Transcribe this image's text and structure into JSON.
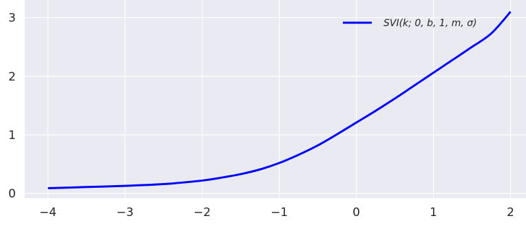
{
  "chart_data": {
    "type": "line",
    "title": "",
    "xlabel": "",
    "ylabel": "",
    "xlim": [
      -4.3,
      2.2
    ],
    "ylim": [
      -0.08,
      3.3
    ],
    "x_ticks": [
      -4,
      -3,
      -2,
      -1,
      0,
      1,
      2
    ],
    "x_tick_labels": [
      "−4",
      "−3",
      "−2",
      "−1",
      "0",
      "1",
      "2"
    ],
    "y_ticks": [
      0,
      1,
      2,
      3
    ],
    "y_tick_labels": [
      "0",
      "1",
      "2",
      "3"
    ],
    "grid": true,
    "style": "seaborn-darkgrid",
    "background_color": "#eaeaf2",
    "grid_color": "#ffffff",
    "legend": {
      "placement": "top-right",
      "entries": [
        "SVI(k; 0, b, 1, m, σ)"
      ]
    },
    "series": [
      {
        "name": "SVI(k; 0, b, 1, m, σ)",
        "color": "#0000ff",
        "x": [
          -4.0,
          -3.5,
          -3.0,
          -2.5,
          -2.0,
          -1.75,
          -1.5,
          -1.25,
          -1.0,
          -0.75,
          -0.5,
          -0.25,
          0.0,
          0.25,
          0.5,
          0.75,
          1.0,
          1.25,
          1.5,
          1.75,
          2.0
        ],
        "y": [
          0.09,
          0.11,
          0.13,
          0.16,
          0.22,
          0.27,
          0.33,
          0.41,
          0.52,
          0.66,
          0.82,
          1.01,
          1.21,
          1.41,
          1.62,
          1.84,
          2.06,
          2.28,
          2.5,
          2.73,
          3.1
        ]
      }
    ]
  }
}
